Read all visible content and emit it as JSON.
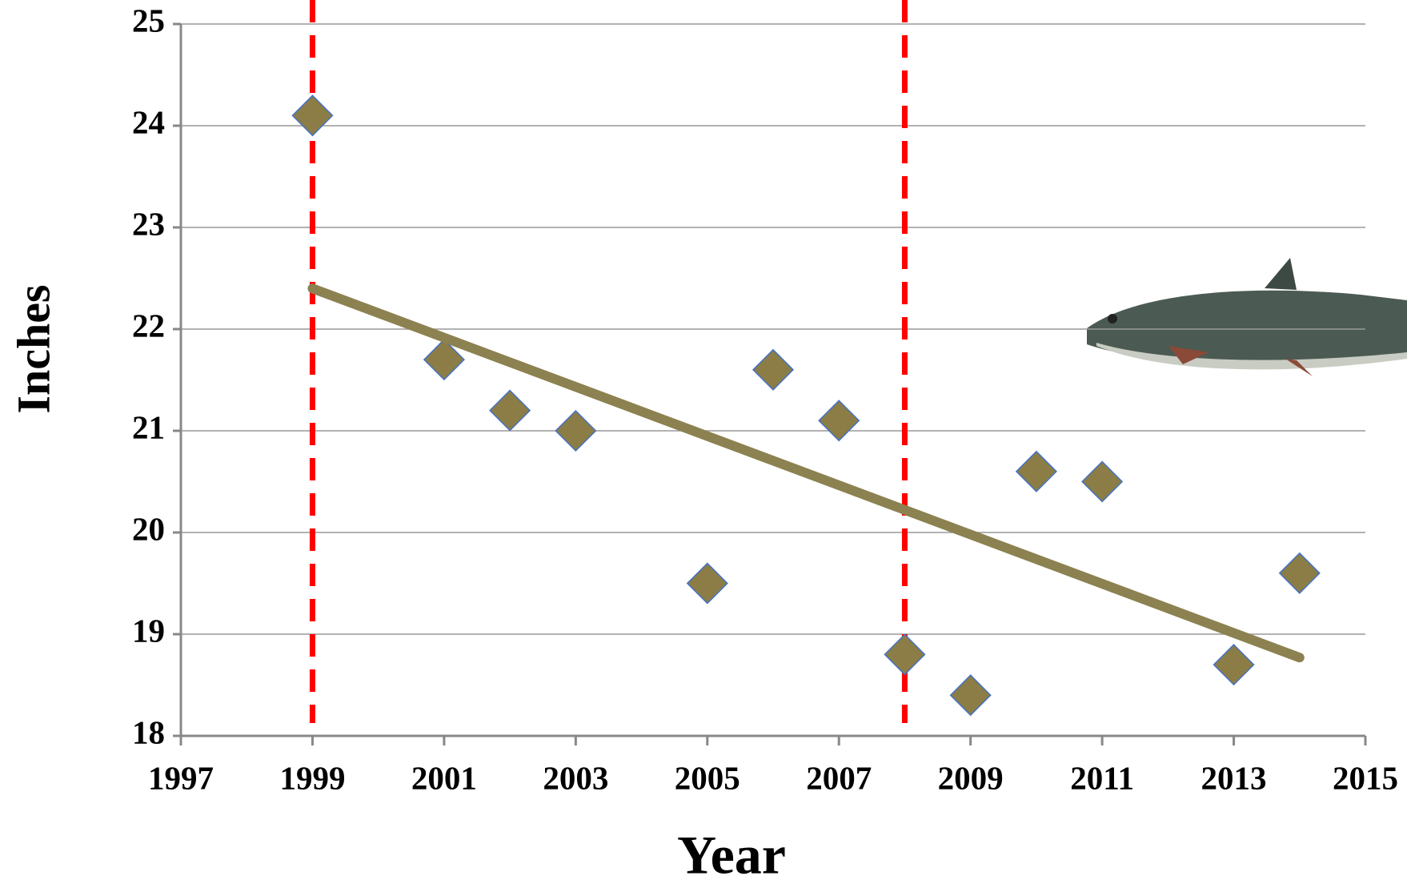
{
  "chart_data": {
    "type": "scatter",
    "x_label": "Year",
    "y_label": "Inches",
    "x": [
      1999,
      2001,
      2002,
      2003,
      2005,
      2006,
      2007,
      2008,
      2009,
      2010,
      2011,
      2013,
      2014
    ],
    "values": [
      24.1,
      21.7,
      21.2,
      21.0,
      19.5,
      21.6,
      21.1,
      18.8,
      18.4,
      20.6,
      20.5,
      18.7,
      19.6
    ],
    "color": "#8b7d45",
    "edge_color": "#4472c4",
    "trend": {
      "x": [
        1999,
        2014
      ],
      "values": [
        22.4,
        18.77
      ],
      "color": "#8c8150"
    },
    "vlines": [
      1999,
      2008
    ],
    "vline_color": "#ff0000",
    "xlim": [
      1997,
      2015
    ],
    "xticks": [
      1997,
      1999,
      2001,
      2003,
      2005,
      2007,
      2009,
      2011,
      2013,
      2015
    ],
    "ylim": [
      18,
      25
    ],
    "yticks": [
      18,
      19,
      20,
      21,
      22,
      23,
      24,
      25
    ],
    "grid": true
  }
}
